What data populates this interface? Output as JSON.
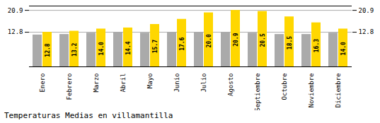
{
  "chart_data": {
    "type": "bar",
    "title": "Temperaturas Medias en villamantilla",
    "categories": [
      "Enero",
      "Febrero",
      "Marzo",
      "Abril",
      "Mayo",
      "Junio",
      "Julio",
      "Agosto",
      "Septiembre",
      "Octubre",
      "Noviembre",
      "Diciembre"
    ],
    "series": [
      {
        "color": "#AAAAAA",
        "values": [
          11.8,
          12.0,
          12.5,
          12.8,
          12.5,
          12.8,
          12.8,
          12.8,
          12.5,
          12.0,
          12.0,
          12.5
        ]
      },
      {
        "color": "#FFD700",
        "values": [
          12.8,
          13.2,
          14.0,
          14.4,
          15.7,
          17.6,
          20.0,
          20.9,
          20.5,
          18.5,
          16.3,
          14.0
        ],
        "data_labels": true,
        "value_labels": [
          "12.8",
          "13.2",
          "14.0",
          "14.4",
          "15.7",
          "17.6",
          "20.0",
          "20.9",
          "20.5",
          "18.5",
          "16.3",
          "14.0"
        ]
      }
    ],
    "ylim": [
      0,
      22.5
    ],
    "yticks": [
      12.8,
      20.9
    ],
    "grid": true
  }
}
